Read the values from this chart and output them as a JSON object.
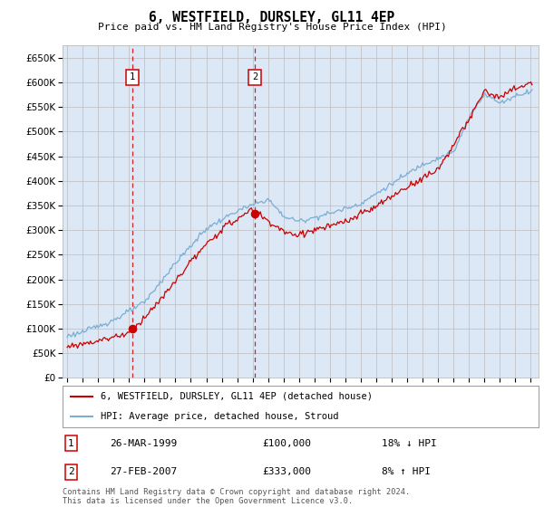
{
  "title": "6, WESTFIELD, DURSLEY, GL11 4EP",
  "subtitle": "Price paid vs. HM Land Registry's House Price Index (HPI)",
  "legend_label_red": "6, WESTFIELD, DURSLEY, GL11 4EP (detached house)",
  "legend_label_blue": "HPI: Average price, detached house, Stroud",
  "sale1_date": 1999.23,
  "sale1_price": 100000,
  "sale2_date": 2007.15,
  "sale2_price": 333000,
  "table_rows": [
    {
      "num": "1",
      "date": "26-MAR-1999",
      "price": "£100,000",
      "hpi": "18% ↓ HPI"
    },
    {
      "num": "2",
      "date": "27-FEB-2007",
      "price": "£333,000",
      "hpi": "8% ↑ HPI"
    }
  ],
  "footer": "Contains HM Land Registry data © Crown copyright and database right 2024.\nThis data is licensed under the Open Government Licence v3.0.",
  "red_color": "#cc0000",
  "blue_color": "#7aadd4",
  "dashed_color": "#cc0000",
  "background_color": "#dce8f5",
  "grid_color": "#bbbbbb",
  "ylim_min": 0,
  "ylim_max": 675000,
  "xmin": 1994.7,
  "xmax": 2025.5,
  "yticks": [
    0,
    50000,
    100000,
    150000,
    200000,
    250000,
    300000,
    350000,
    400000,
    450000,
    500000,
    550000,
    600000,
    650000
  ],
  "xticks": [
    1995,
    1996,
    1997,
    1998,
    1999,
    2000,
    2001,
    2002,
    2003,
    2004,
    2005,
    2006,
    2007,
    2008,
    2009,
    2010,
    2011,
    2012,
    2013,
    2014,
    2015,
    2016,
    2017,
    2018,
    2019,
    2020,
    2021,
    2022,
    2023,
    2024,
    2025
  ]
}
